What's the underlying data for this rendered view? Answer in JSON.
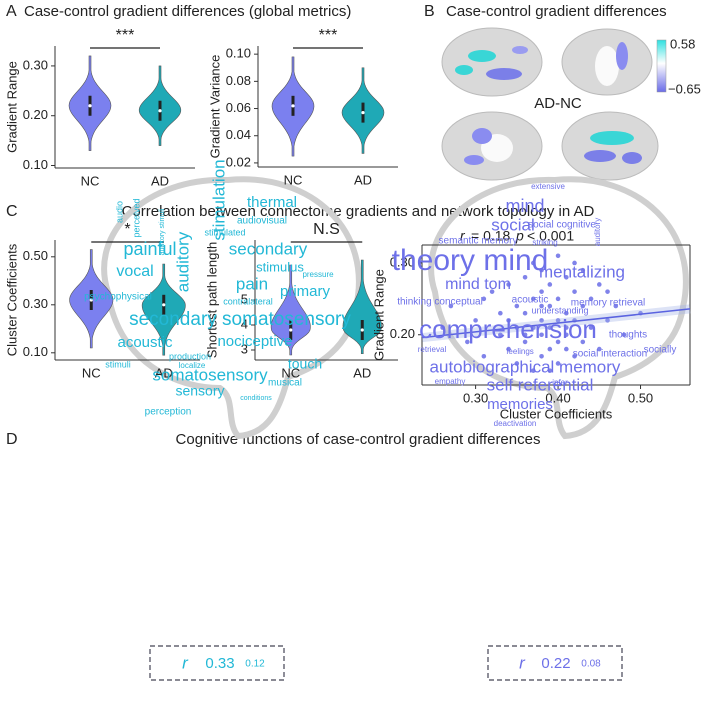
{
  "panels": {
    "A": {
      "letter": "A",
      "title": "Case-control gradient differences (global metrics)"
    },
    "B": {
      "letter": "B",
      "title": "Case-control gradient differences",
      "contrast": "AD-NC",
      "colorbar_labels": [
        "0.58",
        "−0.65"
      ]
    },
    "C": {
      "letter": "C",
      "title": "Correlation between connectome gradients and network topology in AD"
    },
    "D": {
      "letter": "D",
      "title": "Cognitive functions of case-control gradient differences",
      "clouds": [
        {
          "color": "#22b8d6",
          "words": [
            "thermal",
            "audiovisual",
            "stimulation",
            "auditory",
            "secondary",
            "stimulus",
            "pain",
            "primary",
            "painful",
            "vocal",
            "psychophysical",
            "contralateral",
            "secondary somatosensory",
            "acoustic",
            "nociceptive",
            "touch",
            "somatosensory",
            "sensory",
            "musical",
            "perception",
            "stimuli",
            "production",
            "audio",
            "perceived",
            "stimulated",
            "pressure",
            "conditions",
            "auditory stimuli",
            "localize"
          ],
          "stat": [
            "r",
            "0.33",
            "0.12"
          ]
        },
        {
          "color": "#6d70e8",
          "words": [
            "extensive",
            "mind",
            "social",
            "social cognitive",
            "semantic memory",
            "striking",
            "auditory",
            "theory mind",
            "mind tom",
            "mentalizing",
            "thinking conceptual",
            "acoustic",
            "understanding",
            "memory retrieval",
            "comprehension",
            "thoughts",
            "retrieval",
            "feelings",
            "social interaction",
            "socially",
            "autobiographical memory",
            "empathy",
            "infer",
            "self referential",
            "memories",
            "deactivation"
          ],
          "stat": [
            "r",
            "0.22",
            "0.08"
          ]
        }
      ]
    }
  },
  "chart_data": [
    {
      "type": "violin",
      "y_label": "Gradient Range",
      "categories": [
        "NC",
        "AD"
      ],
      "colors": [
        "#7b80ef",
        "#1fa9b6"
      ],
      "min": [
        0.13,
        0.14
      ],
      "median": [
        0.22,
        0.21
      ],
      "max": [
        0.32,
        0.3
      ],
      "ylim": [
        0.095,
        0.34
      ],
      "yticks": [
        {
          "value": 0.1,
          "label": "0.10"
        },
        {
          "value": 0.2,
          "label": "0.20"
        },
        {
          "value": 0.3,
          "label": "0.30"
        }
      ],
      "significance": "***"
    },
    {
      "type": "violin",
      "y_label": "Gradient Variance",
      "categories": [
        "NC",
        "AD"
      ],
      "colors": [
        "#7b80ef",
        "#1fa9b6"
      ],
      "min": [
        0.025,
        0.027
      ],
      "median": [
        0.062,
        0.057
      ],
      "max": [
        0.098,
        0.09
      ],
      "ylim": [
        0.017,
        0.106
      ],
      "yticks": [
        0.02,
        0.04,
        0.06,
        0.08,
        {
          "value": 0.1,
          "label": "0.10"
        }
      ],
      "significance": "***"
    },
    {
      "type": "violin",
      "y_label": "Cluster Coefficients",
      "categories": [
        "NC",
        "AD"
      ],
      "colors": [
        "#7b80ef",
        "#1fa9b6"
      ],
      "min": [
        0.12,
        0.09
      ],
      "median": [
        0.32,
        0.3
      ],
      "max": [
        0.53,
        0.47
      ],
      "ylim": [
        0.07,
        0.57
      ],
      "yticks": [
        {
          "value": 0.1,
          "label": "0.10"
        },
        {
          "value": 0.3,
          "label": "0.30"
        },
        {
          "value": 0.5,
          "label": "0.50"
        }
      ],
      "significance": "*"
    },
    {
      "type": "violin",
      "y_label": "Shortest path length",
      "categories": [
        "NC",
        "AD"
      ],
      "colors": [
        "#7b80ef",
        "#1fa9b6"
      ],
      "min": [
        2.8,
        2.85
      ],
      "median": [
        3.8,
        3.8
      ],
      "max": [
        6.4,
        6.6
      ],
      "ylim": [
        2.6,
        7.4
      ],
      "yticks": [
        3,
        4,
        5
      ],
      "significance": "N.S"
    },
    {
      "type": "scatter",
      "x_label": "Cluster Coefficients",
      "y_label": "Gradient Range",
      "color": "#7276e8",
      "annotation": [
        "r",
        "= 0.18",
        "p",
        "< 0.001"
      ],
      "x": [
        0.27,
        0.29,
        0.3,
        0.31,
        0.32,
        0.33,
        0.33,
        0.34,
        0.34,
        0.35,
        0.35,
        0.35,
        0.36,
        0.36,
        0.36,
        0.37,
        0.37,
        0.37,
        0.37,
        0.38,
        0.38,
        0.38,
        0.38,
        0.38,
        0.39,
        0.39,
        0.39,
        0.39,
        0.4,
        0.4,
        0.4,
        0.4,
        0.4,
        0.41,
        0.41,
        0.41,
        0.41,
        0.42,
        0.42,
        0.42,
        0.43,
        0.43,
        0.43,
        0.44,
        0.44,
        0.45,
        0.45,
        0.46,
        0.47,
        0.48,
        0.5,
        0.26,
        0.31,
        0.36,
        0.39,
        0.42,
        0.46,
        0.34,
        0.38,
        0.41
      ],
      "y": [
        0.24,
        0.19,
        0.22,
        0.17,
        0.26,
        0.2,
        0.23,
        0.18,
        0.27,
        0.21,
        0.24,
        0.16,
        0.19,
        0.23,
        0.28,
        0.15,
        0.21,
        0.25,
        0.3,
        0.17,
        0.2,
        0.22,
        0.26,
        0.29,
        0.18,
        0.21,
        0.24,
        0.27,
        0.16,
        0.19,
        0.22,
        0.25,
        0.31,
        0.18,
        0.21,
        0.23,
        0.28,
        0.17,
        0.22,
        0.26,
        0.19,
        0.24,
        0.29,
        0.21,
        0.25,
        0.18,
        0.27,
        0.22,
        0.24,
        0.2,
        0.23,
        0.21,
        0.25,
        0.2,
        0.15,
        0.3,
        0.26,
        0.22,
        0.24,
        0.2
      ],
      "fit": {
        "x": [
          0.235,
          0.56
        ],
        "y": [
          0.196,
          0.236
        ]
      },
      "xlim": [
        0.235,
        0.56
      ],
      "xticks": [
        {
          "value": 0.3,
          "label": "0.30"
        },
        {
          "value": 0.4,
          "label": "0.40"
        },
        {
          "value": 0.5,
          "label": "0.50"
        }
      ],
      "ylim": [
        0.13,
        0.325
      ],
      "yticks": [
        {
          "value": 0.2,
          "label": "0.20"
        },
        {
          "value": 0.3,
          "label": "0.30"
        }
      ]
    }
  ]
}
